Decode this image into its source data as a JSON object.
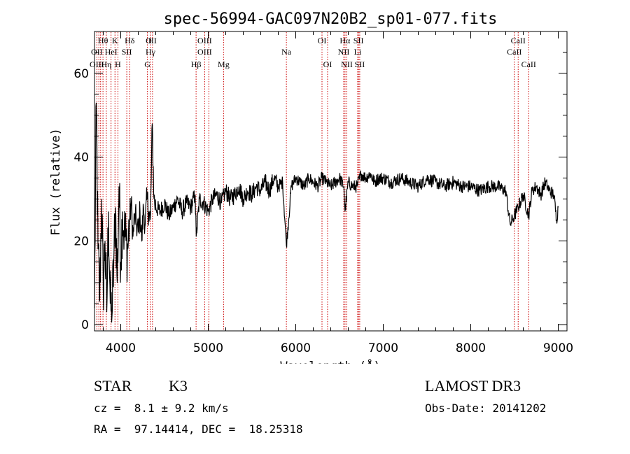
{
  "chart_data": {
    "type": "line",
    "title": "spec-56994-GAC097N20B2_sp01-077.fits",
    "xlabel": "Wavelength (Å)",
    "ylabel": "Flux (relative)",
    "xlim": [
      3700,
      9100
    ],
    "ylim": [
      -1.5,
      70
    ],
    "x_ticks": [
      4000,
      5000,
      6000,
      7000,
      8000,
      9000
    ],
    "x_tick_labels": [
      "4000",
      "5000",
      "6000",
      "7000",
      "8000",
      "9000"
    ],
    "y_ticks": [
      0,
      20,
      40,
      60
    ],
    "y_tick_labels": [
      "0",
      "20",
      "40",
      "60"
    ],
    "series": [
      {
        "name": "flux",
        "x": [
          3700,
          3720,
          3740,
          3760,
          3780,
          3800,
          3820,
          3840,
          3860,
          3880,
          3900,
          3920,
          3940,
          3960,
          3980,
          4000,
          4020,
          4040,
          4060,
          4080,
          4100,
          4120,
          4140,
          4160,
          4180,
          4200,
          4220,
          4240,
          4260,
          4280,
          4300,
          4320,
          4340,
          4360,
          4380,
          4400,
          4450,
          4500,
          4550,
          4600,
          4650,
          4700,
          4750,
          4800,
          4850,
          4862,
          4900,
          4950,
          5000,
          5050,
          5100,
          5150,
          5200,
          5250,
          5300,
          5350,
          5400,
          5450,
          5500,
          5550,
          5600,
          5650,
          5700,
          5750,
          5800,
          5850,
          5893,
          5950,
          6000,
          6050,
          6100,
          6150,
          6200,
          6250,
          6300,
          6350,
          6400,
          6450,
          6500,
          6550,
          6563,
          6600,
          6650,
          6700,
          6750,
          6800,
          6850,
          6900,
          6950,
          7000,
          7100,
          7200,
          7300,
          7400,
          7500,
          7600,
          7700,
          7800,
          7900,
          8000,
          8100,
          8200,
          8300,
          8400,
          8450,
          8498,
          8542,
          8600,
          8662,
          8700,
          8750,
          8800,
          8850,
          8900,
          8950,
          8980,
          9000
        ],
        "y": [
          4,
          53,
          18,
          6,
          30,
          8,
          20,
          3,
          27,
          5,
          2,
          15,
          28,
          10,
          33,
          15,
          27,
          22,
          20,
          18,
          25,
          29,
          21,
          26,
          24,
          22,
          27,
          20,
          28,
          24,
          30,
          27,
          25,
          48,
          30,
          28,
          27,
          29,
          26,
          28,
          30,
          27,
          29,
          28,
          31,
          21,
          30,
          29,
          27,
          30,
          31,
          29,
          32,
          30,
          31,
          33,
          30,
          32,
          31,
          33,
          32,
          34,
          32,
          35,
          33,
          34,
          19,
          33,
          35,
          34,
          33,
          35,
          34,
          33,
          35,
          34,
          33,
          34,
          35,
          33,
          27,
          34,
          33,
          33,
          36,
          35,
          36,
          34,
          35,
          35,
          34,
          35,
          34,
          33,
          35,
          34,
          33,
          34,
          33,
          33,
          32,
          33,
          33,
          32,
          24,
          26,
          28,
          31,
          26,
          32,
          33,
          31,
          34,
          32,
          31,
          25,
          28
        ]
      }
    ],
    "line_markers": [
      {
        "label": "Hθ",
        "x": 3797,
        "row": 1
      },
      {
        "label": "OII",
        "x": 3727,
        "row": 2
      },
      {
        "label": "OIII",
        "x": 3727,
        "row": 3
      },
      {
        "label": "K",
        "x": 3934,
        "row": 1
      },
      {
        "label": "HeI",
        "x": 3889,
        "row": 2
      },
      {
        "label": "Hη",
        "x": 3835,
        "row": 3
      },
      {
        "label": "H",
        "x": 3968,
        "row": 3
      },
      {
        "label": "Hδ",
        "x": 4102,
        "row": 1
      },
      {
        "label": "SII",
        "x": 4069,
        "row": 2
      },
      {
        "label": "O",
        "x": 4320,
        "row": 1
      },
      {
        "label": "III",
        "x": 4363,
        "row": 1
      },
      {
        "label": "Hγ",
        "x": 4340,
        "row": 2
      },
      {
        "label": "G",
        "x": 4305,
        "row": 3
      },
      {
        "label": "OIII",
        "x": 4959,
        "row": 1
      },
      {
        "label": "OIII",
        "x": 4959,
        "row": 2
      },
      {
        "label": "Hβ",
        "x": 4861,
        "row": 3
      },
      {
        "label": "Mg",
        "x": 5175,
        "row": 3
      },
      {
        "label": "Na",
        "x": 5893,
        "row": 2
      },
      {
        "label": "OI",
        "x": 6300,
        "row": 1
      },
      {
        "label": "OI",
        "x": 6364,
        "row": 3
      },
      {
        "label": "Hα",
        "x": 6563,
        "row": 1
      },
      {
        "label": "SII",
        "x": 6717,
        "row": 1
      },
      {
        "label": "NII",
        "x": 6548,
        "row": 2
      },
      {
        "label": "Li",
        "x": 6708,
        "row": 2
      },
      {
        "label": "NII",
        "x": 6584,
        "row": 3
      },
      {
        "label": "SII",
        "x": 6731,
        "row": 3
      },
      {
        "label": "CaII",
        "x": 8542,
        "row": 1
      },
      {
        "label": "CaII",
        "x": 8498,
        "row": 2
      },
      {
        "label": "CaII",
        "x": 8662,
        "row": 3
      }
    ],
    "line_x": [
      3727,
      3750,
      3770,
      3797,
      3835,
      3889,
      3934,
      3968,
      4069,
      4102,
      4305,
      4340,
      4363,
      4861,
      4959,
      5007,
      5175,
      5893,
      6300,
      6364,
      6548,
      6563,
      6584,
      6708,
      6717,
      6731,
      8498,
      8542,
      8662
    ]
  },
  "info": {
    "object_class": "STAR",
    "subclass": "K3",
    "survey": "LAMOST DR3",
    "redshift": "cz =  8.1 ± 9.2 km/s",
    "obs_date": "Obs-Date: 20141202",
    "coords": "RA =  97.14414, DEC =  18.25318"
  },
  "colors": {
    "spectrum": "#000000",
    "line_markers": "#cc0000"
  }
}
